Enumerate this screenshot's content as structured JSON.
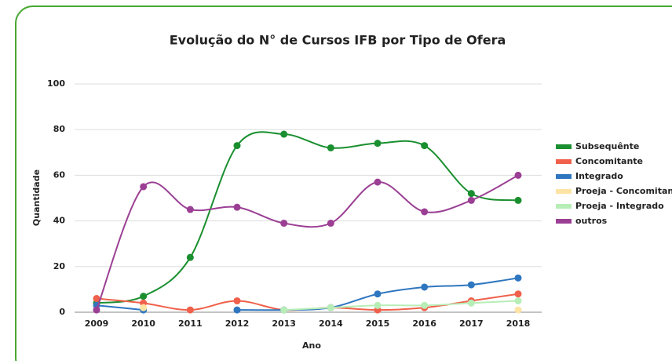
{
  "chart_data": {
    "type": "line",
    "title": "Evolução do N° de Cursos IFB por Tipo de Ofera",
    "x_label": "Ano",
    "y_label": "Quantidade",
    "categories": [
      "2009",
      "2010",
      "2011",
      "2012",
      "2013",
      "2014",
      "2015",
      "2016",
      "2017",
      "2018"
    ],
    "series": [
      {
        "name": "Subsequênte",
        "color": "#1a8f2f",
        "values": [
          4,
          7,
          24,
          73,
          78,
          72,
          74,
          73,
          52,
          49
        ]
      },
      {
        "name": "Concomitante",
        "color": "#f0604a",
        "values": [
          6,
          4,
          1,
          5,
          1,
          2,
          1,
          2,
          5,
          8
        ]
      },
      {
        "name": "Integrado",
        "color": "#2f76c0",
        "values": [
          3,
          1,
          null,
          1,
          1,
          2,
          8,
          11,
          12,
          15
        ]
      },
      {
        "name": "Proeja - Concomitante",
        "color": "#fde4a5",
        "values": [
          null,
          2,
          null,
          null,
          null,
          null,
          null,
          null,
          null,
          1
        ]
      },
      {
        "name": "Proeja - Integrado",
        "color": "#b7eeb7",
        "values": [
          null,
          null,
          null,
          null,
          1,
          2,
          3,
          3,
          4,
          5
        ]
      },
      {
        "name": "outros",
        "color": "#9b3f94",
        "values": [
          1,
          55,
          45,
          46,
          39,
          39,
          57,
          44,
          49,
          60
        ]
      }
    ],
    "ylim": [
      0,
      100
    ],
    "yticks": [
      0,
      20,
      40,
      60,
      80,
      100
    ],
    "grid": true,
    "legend": "right"
  }
}
